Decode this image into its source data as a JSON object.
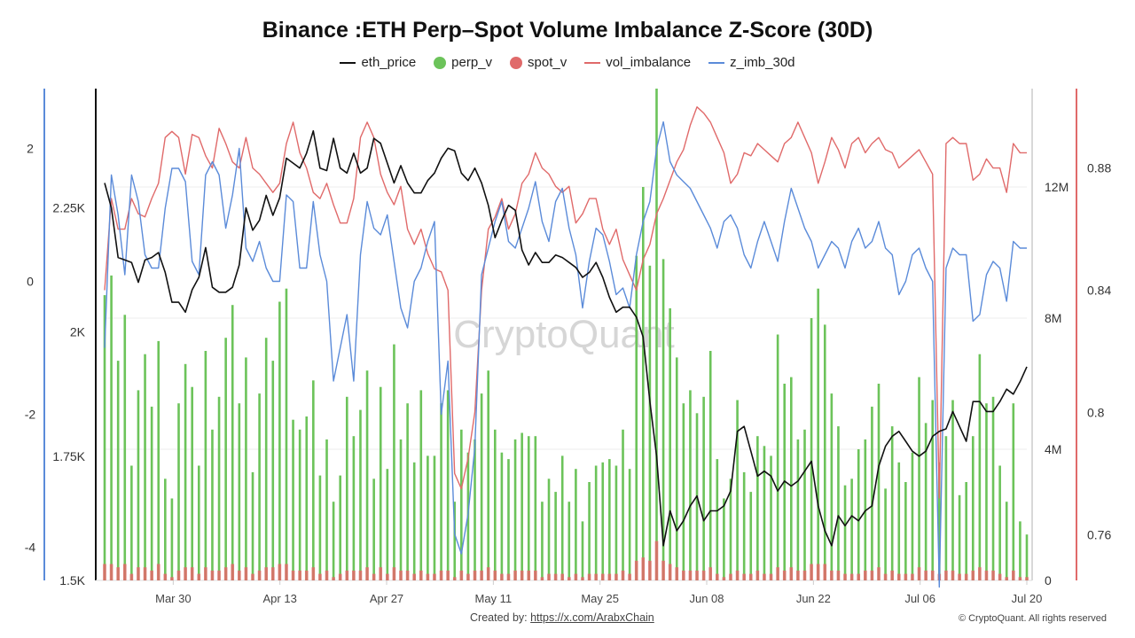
{
  "chart_data": {
    "type": "line",
    "title": "Binance :ETH Perp–Spot Volume Imbalance Z-Score (30D)",
    "legend": [
      {
        "name": "eth_price",
        "style": "line",
        "color": "#111111"
      },
      {
        "name": "perp_v",
        "style": "dot",
        "color": "#6cc35a"
      },
      {
        "name": "spot_v",
        "style": "dot",
        "color": "#e06a6a"
      },
      {
        "name": "vol_imbalance",
        "style": "line",
        "color": "#e06a6a"
      },
      {
        "name": "z_imb_30d",
        "style": "line",
        "color": "#5b8bd9"
      }
    ],
    "legend_position": "top-center",
    "grid": true,
    "x_ticks": [
      "Mar 30",
      "Apr 13",
      "Apr 27",
      "May 11",
      "May 25",
      "Jun 08",
      "Jun 22",
      "Jul 06",
      "Jul 20"
    ],
    "x_range": [
      "2025-03-21",
      "2025-07-20"
    ],
    "axes": {
      "z_score": {
        "side": "far-left",
        "color": "#5b8bd9",
        "ticks": [
          "2",
          "0",
          "-2",
          "-4"
        ],
        "range": [
          -4.5,
          2.9
        ]
      },
      "price": {
        "side": "left",
        "color": "#111111",
        "ticks": [
          "2.25K",
          "2K",
          "1.75K",
          "1.5K"
        ],
        "range": [
          1500,
          2490
        ]
      },
      "volume": {
        "side": "right",
        "color": "#999999",
        "ticks": [
          "12M",
          "8M",
          "4M",
          "0"
        ],
        "range": [
          0,
          15000000
        ]
      },
      "imbalance": {
        "side": "far-right",
        "color": "#e06a6a",
        "ticks": [
          "0.88",
          "0.84",
          "0.8",
          "0.76"
        ],
        "range": [
          0.745,
          0.906
        ]
      }
    },
    "series": [
      {
        "name": "eth_price",
        "axis": "price",
        "values": [
          2300,
          2250,
          2150,
          2145,
          2140,
          2100,
          2145,
          2150,
          2160,
          2120,
          2060,
          2060,
          2040,
          2085,
          2110,
          2170,
          2090,
          2080,
          2080,
          2090,
          2135,
          2250,
          2205,
          2225,
          2275,
          2235,
          2270,
          2350,
          2340,
          2330,
          2360,
          2405,
          2330,
          2325,
          2390,
          2330,
          2320,
          2360,
          2320,
          2330,
          2390,
          2380,
          2340,
          2300,
          2335,
          2300,
          2280,
          2280,
          2305,
          2320,
          2350,
          2370,
          2365,
          2320,
          2305,
          2330,
          2300,
          2255,
          2190,
          2225,
          2255,
          2245,
          2165,
          2135,
          2160,
          2140,
          2140,
          2155,
          2150,
          2140,
          2130,
          2110,
          2120,
          2140,
          2110,
          2070,
          2040,
          2050,
          2050,
          2030,
          1990,
          1860,
          1750,
          1570,
          1640,
          1600,
          1620,
          1650,
          1670,
          1620,
          1640,
          1640,
          1650,
          1680,
          1800,
          1810,
          1760,
          1710,
          1720,
          1710,
          1680,
          1700,
          1690,
          1700,
          1720,
          1740,
          1650,
          1600,
          1570,
          1630,
          1610,
          1630,
          1620,
          1640,
          1650,
          1730,
          1770,
          1790,
          1800,
          1780,
          1760,
          1750,
          1760,
          1790,
          1800,
          1805,
          1840,
          1810,
          1780,
          1860,
          1860,
          1840,
          1840,
          1860,
          1885,
          1875,
          1900,
          1930
        ],
        "color": "#111111"
      },
      {
        "name": "perp_v",
        "axis": "volume",
        "type": "bar",
        "values": [
          8700,
          9300,
          6700,
          8100,
          3500,
          5800,
          6900,
          5300,
          7300,
          3100,
          2500,
          5400,
          6600,
          5900,
          3500,
          7000,
          4600,
          5600,
          7400,
          8400,
          5400,
          6800,
          3300,
          5700,
          7400,
          6700,
          8500,
          8900,
          4900,
          4600,
          5000,
          6100,
          3200,
          4300,
          2400,
          3200,
          5600,
          4400,
          5200,
          6400,
          3100,
          5900,
          3400,
          7200,
          4300,
          5400,
          3600,
          5800,
          3800,
          3800,
          5400,
          5800,
          2400,
          4600,
          3900,
          4300,
          5700,
          6400,
          4600,
          3900,
          3700,
          4300,
          4500,
          4400,
          4400,
          2400,
          3100,
          2700,
          3800,
          2400,
          3400,
          1800,
          3000,
          3500,
          3600,
          3700,
          3500,
          4600,
          3400,
          9900,
          12000,
          9600,
          15000,
          9800,
          8300,
          6800,
          5400,
          5800,
          5100,
          5600,
          7000,
          3700,
          2500,
          3100,
          5500,
          3300,
          2700,
          4400,
          4100,
          3800,
          7500,
          6000,
          6200,
          4300,
          4600,
          8000,
          8900,
          7800,
          5700,
          4700,
          2900,
          3100,
          4000,
          4300,
          5300,
          6000,
          2800,
          4700,
          3600,
          3000,
          3900,
          6200,
          4800,
          5500,
          3600,
          4400,
          5500,
          2600,
          3000,
          4400,
          6900,
          5400,
          5600,
          3500,
          2400,
          5400,
          1800,
          1400
        ],
        "color": "#6cc35a"
      },
      {
        "name": "spot_v",
        "axis": "volume",
        "type": "bar",
        "values": [
          500,
          500,
          400,
          500,
          200,
          400,
          400,
          300,
          500,
          200,
          100,
          300,
          400,
          400,
          200,
          400,
          300,
          300,
          400,
          500,
          300,
          400,
          200,
          300,
          400,
          400,
          500,
          500,
          300,
          300,
          300,
          400,
          200,
          300,
          100,
          200,
          300,
          300,
          300,
          400,
          200,
          400,
          200,
          400,
          300,
          300,
          200,
          300,
          200,
          200,
          300,
          300,
          100,
          300,
          200,
          300,
          300,
          400,
          300,
          200,
          200,
          300,
          300,
          300,
          300,
          100,
          200,
          200,
          200,
          100,
          200,
          100,
          200,
          200,
          200,
          200,
          200,
          300,
          200,
          600,
          700,
          600,
          1200,
          600,
          500,
          400,
          300,
          300,
          300,
          300,
          400,
          200,
          100,
          200,
          300,
          200,
          200,
          300,
          200,
          200,
          400,
          300,
          400,
          300,
          300,
          500,
          500,
          500,
          300,
          300,
          200,
          200,
          200,
          300,
          300,
          400,
          200,
          300,
          200,
          200,
          200,
          400,
          300,
          300,
          200,
          300,
          300,
          200,
          200,
          300,
          400,
          300,
          300,
          200,
          100,
          300,
          100,
          100
        ],
        "color": "#e06a6a"
      },
      {
        "name": "vol_imbalance",
        "axis": "imbalance",
        "values": [
          0.84,
          0.87,
          0.86,
          0.86,
          0.87,
          0.865,
          0.864,
          0.87,
          0.875,
          0.89,
          0.892,
          0.89,
          0.878,
          0.891,
          0.89,
          0.884,
          0.88,
          0.893,
          0.888,
          0.882,
          0.88,
          0.89,
          0.88,
          0.878,
          0.875,
          0.872,
          0.875,
          0.888,
          0.895,
          0.885,
          0.88,
          0.872,
          0.87,
          0.875,
          0.868,
          0.862,
          0.862,
          0.87,
          0.89,
          0.895,
          0.89,
          0.878,
          0.872,
          0.868,
          0.874,
          0.86,
          0.855,
          0.86,
          0.852,
          0.847,
          0.846,
          0.84,
          0.78,
          0.775,
          0.785,
          0.8,
          0.84,
          0.86,
          0.864,
          0.87,
          0.86,
          0.865,
          0.875,
          0.878,
          0.885,
          0.88,
          0.878,
          0.874,
          0.872,
          0.874,
          0.862,
          0.865,
          0.87,
          0.87,
          0.86,
          0.855,
          0.86,
          0.85,
          0.845,
          0.84,
          0.85,
          0.855,
          0.865,
          0.87,
          0.876,
          0.882,
          0.886,
          0.894,
          0.9,
          0.898,
          0.895,
          0.89,
          0.885,
          0.875,
          0.878,
          0.885,
          0.884,
          0.888,
          0.886,
          0.884,
          0.882,
          0.888,
          0.89,
          0.895,
          0.89,
          0.885,
          0.875,
          0.882,
          0.89,
          0.886,
          0.88,
          0.888,
          0.89,
          0.885,
          0.888,
          0.89,
          0.886,
          0.885,
          0.88,
          0.882,
          0.884,
          0.886,
          0.882,
          0.878,
          0.772,
          0.888,
          0.89,
          0.888,
          0.888,
          0.876,
          0.878,
          0.883,
          0.88,
          0.88,
          0.872,
          0.888,
          0.885,
          0.885
        ],
        "color": "#e06a6a"
      },
      {
        "name": "z_imb_30d",
        "axis": "z_score",
        "values": [
          -1,
          1.6,
          1,
          0.1,
          1.6,
          1.2,
          0.4,
          0.2,
          0.2,
          1.1,
          1.7,
          1.7,
          1.5,
          0.3,
          0.1,
          1.6,
          1.8,
          1.6,
          0.8,
          1.3,
          2,
          0.5,
          0.3,
          0.6,
          0.2,
          0,
          0,
          1.3,
          1.2,
          0.2,
          0.2,
          1.2,
          0.4,
          0,
          -1.5,
          -1,
          -0.5,
          -1.5,
          0.4,
          1.2,
          0.8,
          0.7,
          1,
          0.3,
          -0.4,
          -0.7,
          0,
          0.2,
          0.6,
          0.9,
          -2,
          -1.2,
          -3.8,
          -4.1,
          -3.5,
          -2.5,
          0.1,
          0.5,
          0.9,
          1.2,
          0.6,
          0.5,
          0.8,
          1.1,
          1.5,
          0.9,
          0.6,
          1.2,
          1.4,
          0.8,
          0.4,
          -0.4,
          0.3,
          0.8,
          0.7,
          0.3,
          -0.2,
          -0.1,
          -0.4,
          0.4,
          0.9,
          1.2,
          2,
          2.4,
          1.8,
          1.6,
          1.5,
          1.4,
          1.2,
          1,
          0.8,
          0.5,
          0.9,
          1,
          0.8,
          0.4,
          0.2,
          0.6,
          0.9,
          0.6,
          0.3,
          0.9,
          1.4,
          1.1,
          0.8,
          0.6,
          0.2,
          0.4,
          0.6,
          0.5,
          0.2,
          0.6,
          0.8,
          0.5,
          0.6,
          0.9,
          0.5,
          0.4,
          -0.2,
          0,
          0.4,
          0.5,
          0.2,
          0,
          -4.6,
          0.2,
          0.5,
          0.4,
          0.4,
          -0.6,
          -0.5,
          0.1,
          0.3,
          0.2,
          -0.3,
          0.6,
          0.5,
          0.5
        ],
        "color": "#5b8bd9"
      }
    ],
    "watermark": "CryptoQuant"
  },
  "footer": {
    "created_label": "Created by:",
    "created_link": "https://x.com/ArabxChain",
    "copyright": "© CryptoQuant. All rights reserved"
  }
}
